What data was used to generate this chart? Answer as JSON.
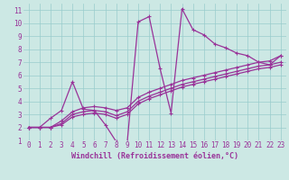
{
  "bg_color": "#cce8e4",
  "line_color": "#993399",
  "grid_color": "#99cccc",
  "xlabel": "Windchill (Refroidissement éolien,°C)",
  "xlim": [
    -0.5,
    23.5
  ],
  "ylim": [
    1,
    11.5
  ],
  "xticks": [
    0,
    1,
    2,
    3,
    4,
    5,
    6,
    7,
    8,
    9,
    10,
    11,
    12,
    13,
    14,
    15,
    16,
    17,
    18,
    19,
    20,
    21,
    22,
    23
  ],
  "yticks": [
    1,
    2,
    3,
    4,
    5,
    6,
    7,
    8,
    9,
    10,
    11
  ],
  "series": [
    {
      "x": [
        0,
        1,
        2,
        3,
        4,
        5,
        6,
        7,
        8,
        9,
        10,
        11,
        12,
        13,
        14,
        15,
        16,
        17,
        18,
        19,
        20,
        21,
        22,
        23
      ],
      "y": [
        2.0,
        2.0,
        2.7,
        3.3,
        5.5,
        3.4,
        3.3,
        2.2,
        0.9,
        0.85,
        10.1,
        10.5,
        6.5,
        3.1,
        11.1,
        9.5,
        9.1,
        8.4,
        8.1,
        7.7,
        7.5,
        7.0,
        6.8,
        7.5
      ]
    },
    {
      "x": [
        0,
        1,
        2,
        3,
        4,
        5,
        6,
        7,
        8,
        9,
        10,
        11,
        12,
        13,
        14,
        15,
        16,
        17,
        18,
        19,
        20,
        21,
        22,
        23
      ],
      "y": [
        2.0,
        2.0,
        2.0,
        2.5,
        3.2,
        3.5,
        3.6,
        3.5,
        3.3,
        3.5,
        4.3,
        4.7,
        5.0,
        5.3,
        5.6,
        5.8,
        6.0,
        6.2,
        6.4,
        6.6,
        6.8,
        7.0,
        7.1,
        7.5
      ]
    },
    {
      "x": [
        0,
        1,
        2,
        3,
        4,
        5,
        6,
        7,
        8,
        9,
        10,
        11,
        12,
        13,
        14,
        15,
        16,
        17,
        18,
        19,
        20,
        21,
        22,
        23
      ],
      "y": [
        2.0,
        2.0,
        2.0,
        2.3,
        3.0,
        3.2,
        3.3,
        3.2,
        2.9,
        3.2,
        4.0,
        4.4,
        4.7,
        5.0,
        5.3,
        5.5,
        5.7,
        5.9,
        6.1,
        6.3,
        6.5,
        6.7,
        6.8,
        7.0
      ]
    },
    {
      "x": [
        0,
        1,
        2,
        3,
        4,
        5,
        6,
        7,
        8,
        9,
        10,
        11,
        12,
        13,
        14,
        15,
        16,
        17,
        18,
        19,
        20,
        21,
        22,
        23
      ],
      "y": [
        2.0,
        2.0,
        2.0,
        2.2,
        2.8,
        3.0,
        3.1,
        3.0,
        2.7,
        3.0,
        3.8,
        4.2,
        4.5,
        4.8,
        5.1,
        5.3,
        5.5,
        5.7,
        5.9,
        6.1,
        6.3,
        6.5,
        6.6,
        6.8
      ]
    }
  ],
  "marker_size": 2.5,
  "line_width": 0.9,
  "label_fontsize": 6,
  "tick_fontsize": 5.5
}
